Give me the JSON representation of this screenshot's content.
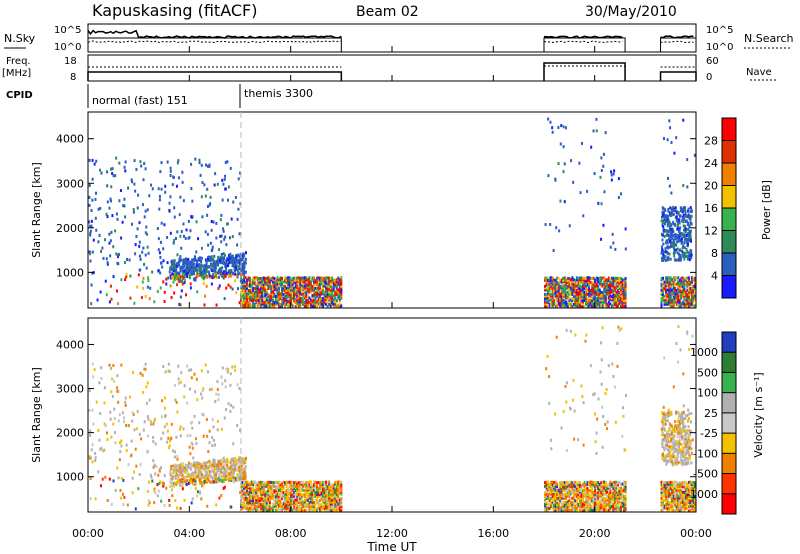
{
  "header": {
    "radar": "Kapuskasing (fitACF)",
    "beam": "Beam 02",
    "date": "30/May/2010"
  },
  "top_panels": {
    "nsky_label": "N.Sky",
    "nsky_ticks": [
      "10^5",
      "10^0"
    ],
    "nsearch_label": "N.Search",
    "nsearch_ticks": [
      "10^5",
      "10^0"
    ],
    "freq_label": "Freq.",
    "freq_unit": "[MHz]",
    "freq_ticks": [
      "18",
      "8"
    ],
    "nave_label": "Nave",
    "nave_ticks": [
      "60",
      "0"
    ],
    "cpid_label": "CPID",
    "cpid_segments": [
      {
        "label": "normal (fast) 151",
        "start": 0,
        "end": 6
      },
      {
        "label": "themis 3300",
        "start": 6,
        "end": 24
      }
    ]
  },
  "chart_data": [
    {
      "type": "heatmap",
      "title": "Power",
      "ylabel": "Slant Range [km]",
      "xlabel": "",
      "ylim": [
        200,
        4600
      ],
      "xlim": [
        0,
        24
      ],
      "yticks": [
        "1000",
        "2000",
        "3000",
        "4000"
      ],
      "xticks": [
        "00:00",
        "04:00",
        "08:00",
        "12:00",
        "16:00",
        "20:00",
        "00:00"
      ],
      "colorbar_label": "Power [dB]",
      "colorbar_ticks": [
        "4",
        "8",
        "12",
        "16",
        "20",
        "24",
        "28"
      ],
      "colorbar_colors": [
        "#1a1aff",
        "#2a5fbf",
        "#2e8b57",
        "#37b24d",
        "#f2c200",
        "#f08000",
        "#e03000",
        "#ff0000"
      ],
      "data_intervals_hours": [
        [
          0,
          10
        ],
        [
          18,
          21.2
        ],
        [
          22.6,
          24
        ]
      ]
    },
    {
      "type": "heatmap",
      "title": "Velocity",
      "ylabel": "Slant Range [km]",
      "xlabel": "Time UT",
      "ylim": [
        200,
        4600
      ],
      "xlim": [
        0,
        24
      ],
      "yticks": [
        "1000",
        "2000",
        "3000",
        "4000"
      ],
      "xticks": [
        "00:00",
        "04:00",
        "08:00",
        "12:00",
        "16:00",
        "20:00",
        "00:00"
      ],
      "colorbar_label": "Velocity [m s⁻¹]",
      "colorbar_ticks": [
        "1000",
        "500",
        "100",
        "25",
        "-25",
        "-100",
        "-500",
        "-1000"
      ],
      "colorbar_colors": [
        "#1f3fbf",
        "#2e7d32",
        "#37b24d",
        "#b0b0b0",
        "#c8c8c8",
        "#f2c200",
        "#f08000",
        "#ff3300",
        "#ff0000"
      ],
      "data_intervals_hours": [
        [
          0,
          10
        ],
        [
          18,
          21.2
        ],
        [
          22.6,
          24
        ]
      ]
    }
  ]
}
